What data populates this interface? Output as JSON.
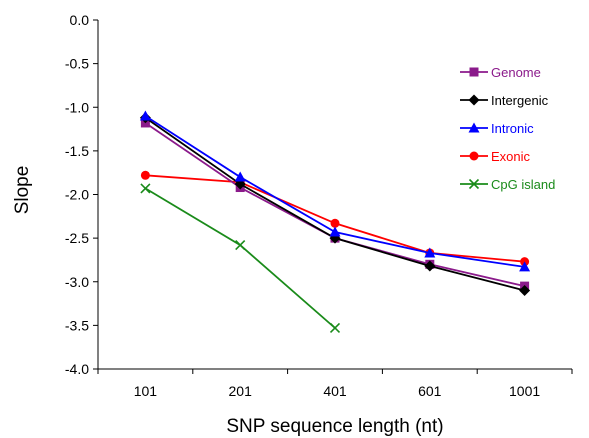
{
  "chart_data": {
    "type": "line",
    "xlabel": "SNP sequence length (nt)",
    "ylabel": "Slope",
    "categories": [
      "101",
      "201",
      "401",
      "601",
      "1001"
    ],
    "ylim": [
      -4.0,
      0.0
    ],
    "yticks": [
      0.0,
      -0.5,
      -1.0,
      -1.5,
      -2.0,
      -2.5,
      -3.0,
      -3.5,
      -4.0
    ],
    "ytick_labels": [
      "0.0",
      "-0.5",
      "-1.0",
      "-1.5",
      "-2.0",
      "-2.5",
      "-3.0",
      "-3.5",
      "-4.0"
    ],
    "grid": false,
    "legend_position": "right",
    "series": [
      {
        "name": "Genome",
        "color": "#8B1A8B",
        "marker": "square",
        "values": [
          -1.18,
          -1.92,
          -2.5,
          -2.8,
          -3.05
        ]
      },
      {
        "name": "Intergenic",
        "color": "#000000",
        "marker": "diamond",
        "values": [
          -1.12,
          -1.88,
          -2.5,
          -2.82,
          -3.1
        ]
      },
      {
        "name": "Intronic",
        "color": "#0000FF",
        "marker": "triangle",
        "values": [
          -1.1,
          -1.8,
          -2.43,
          -2.67,
          -2.83
        ]
      },
      {
        "name": "Exonic",
        "color": "#FF0000",
        "marker": "circle",
        "values": [
          -1.78,
          -1.86,
          -2.33,
          -2.67,
          -2.77
        ]
      },
      {
        "name": "CpG island",
        "color": "#1A8B1A",
        "marker": "x",
        "values": [
          -1.93,
          -2.58,
          -3.53,
          null,
          null
        ]
      }
    ]
  }
}
